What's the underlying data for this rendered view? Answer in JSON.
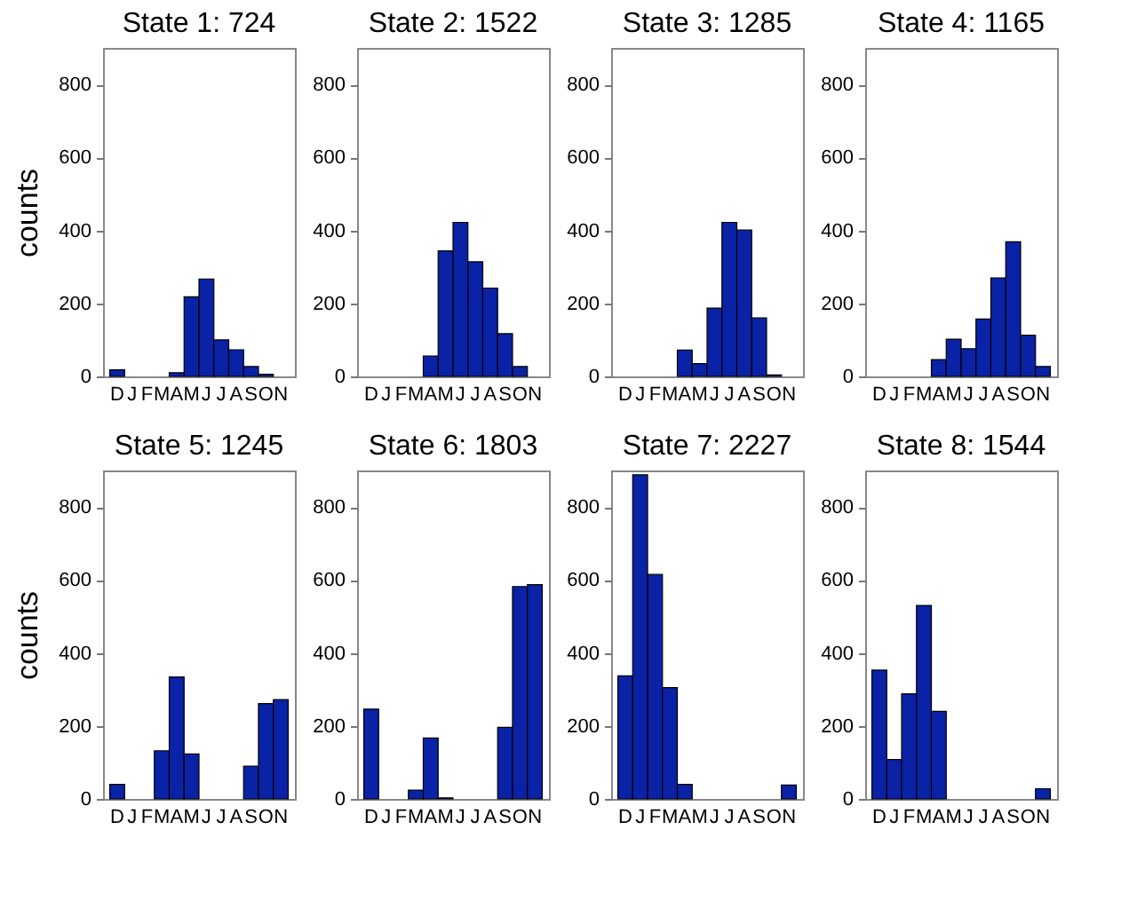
{
  "chart_data": [
    {
      "type": "bar",
      "title": "State 1: 724",
      "ylabel": "counts",
      "categories": [
        "D",
        "J",
        "F",
        "M",
        "A",
        "M",
        "J",
        "J",
        "A",
        "S",
        "O",
        "N"
      ],
      "values": [
        18,
        0,
        0,
        0,
        10,
        218,
        267,
        100,
        73,
        27,
        6,
        0
      ],
      "color": "#0a22a6",
      "ylim": [
        0,
        900
      ],
      "yticks": [
        0,
        200,
        400,
        600,
        800
      ]
    },
    {
      "type": "bar",
      "title": "State 2: 1522",
      "categories": [
        "D",
        "J",
        "F",
        "M",
        "A",
        "M",
        "J",
        "J",
        "A",
        "S",
        "O",
        "N"
      ],
      "values": [
        0,
        0,
        0,
        0,
        56,
        344,
        422,
        314,
        242,
        117,
        27,
        0
      ],
      "color": "#0a22a6",
      "ylim": [
        0,
        900
      ],
      "yticks": [
        0,
        200,
        400,
        600,
        800
      ]
    },
    {
      "type": "bar",
      "title": "State 3: 1285",
      "categories": [
        "D",
        "J",
        "F",
        "M",
        "A",
        "M",
        "J",
        "J",
        "A",
        "S",
        "O",
        "N"
      ],
      "values": [
        0,
        0,
        0,
        0,
        72,
        35,
        187,
        422,
        401,
        160,
        4,
        0
      ],
      "color": "#0a22a6",
      "ylim": [
        0,
        900
      ],
      "yticks": [
        0,
        200,
        400,
        600,
        800
      ]
    },
    {
      "type": "bar",
      "title": "State 4: 1165",
      "categories": [
        "D",
        "J",
        "F",
        "M",
        "A",
        "M",
        "J",
        "J",
        "A",
        "S",
        "O",
        "N"
      ],
      "values": [
        0,
        0,
        0,
        0,
        46,
        102,
        76,
        157,
        270,
        369,
        113,
        27
      ],
      "color": "#0a22a6",
      "ylim": [
        0,
        900
      ],
      "yticks": [
        0,
        200,
        400,
        600,
        800
      ]
    },
    {
      "type": "bar",
      "title": "State 5: 1245",
      "ylabel": "counts",
      "categories": [
        "D",
        "J",
        "F",
        "M",
        "A",
        "M",
        "J",
        "J",
        "A",
        "S",
        "O",
        "N"
      ],
      "values": [
        40,
        0,
        0,
        132,
        334,
        123,
        0,
        0,
        0,
        90,
        261,
        272
      ],
      "color": "#0a22a6",
      "ylim": [
        0,
        900
      ],
      "yticks": [
        0,
        200,
        400,
        600,
        800
      ]
    },
    {
      "type": "bar",
      "title": "State 6: 1803",
      "categories": [
        "D",
        "J",
        "F",
        "M",
        "A",
        "M",
        "J",
        "J",
        "A",
        "S",
        "O",
        "N"
      ],
      "values": [
        246,
        0,
        0,
        24,
        167,
        3,
        0,
        0,
        0,
        196,
        582,
        587
      ],
      "color": "#0a22a6",
      "ylim": [
        0,
        900
      ],
      "yticks": [
        0,
        200,
        400,
        600,
        800
      ]
    },
    {
      "type": "bar",
      "title": "State 7: 2227",
      "categories": [
        "D",
        "J",
        "F",
        "M",
        "A",
        "M",
        "J",
        "J",
        "A",
        "S",
        "O",
        "N"
      ],
      "values": [
        337,
        888,
        615,
        305,
        40,
        0,
        0,
        0,
        0,
        0,
        0,
        38
      ],
      "color": "#0a22a6",
      "ylim": [
        0,
        900
      ],
      "yticks": [
        0,
        200,
        400,
        600,
        800
      ]
    },
    {
      "type": "bar",
      "title": "State 8: 1544",
      "categories": [
        "D",
        "J",
        "F",
        "M",
        "A",
        "M",
        "J",
        "J",
        "A",
        "S",
        "O",
        "N"
      ],
      "values": [
        353,
        108,
        288,
        530,
        240,
        0,
        0,
        0,
        0,
        0,
        0,
        28
      ],
      "color": "#0a22a6",
      "ylim": [
        0,
        900
      ],
      "yticks": [
        0,
        200,
        400,
        600,
        800
      ]
    }
  ]
}
